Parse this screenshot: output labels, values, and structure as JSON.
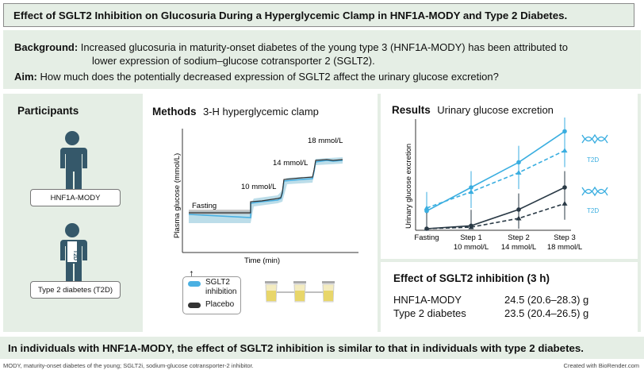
{
  "title": "Effect of SGLT2 Inhibition on Glucosuria During a Hyperglycemic Clamp in HNF1A-MODY and Type 2 Diabetes.",
  "background": {
    "label": "Background:",
    "line1": "Increased glucosuria in maturity-onset diabetes of the young type 3 (HNF1A-MODY) has been attributed to",
    "line2": "lower expression of sodium–glucose cotransporter 2 (SGLT2)."
  },
  "aim": {
    "label": "Aim:",
    "text": "How much does the potentially decreased expression of SGLT2 affect the urinary glucose excretion?"
  },
  "participants": {
    "heading": "Participants",
    "group1": "HNF1A-MODY",
    "group2": "Type 2 diabetes (T2D)",
    "t2d_tag": "T2D"
  },
  "methods": {
    "heading": "Methods",
    "subheading": "3-H hyperglycemic clamp",
    "ylabel": "Plasma glucose (mmol/L)",
    "xlabel": "Time (min)",
    "labels": [
      "Fasting",
      "10 mmol/L",
      "14 mmol/L",
      "18 mmol/L"
    ],
    "legend_sglt2": "SGLT2 inhibition",
    "legend_sglt2_l1": "SGLT2",
    "legend_sglt2_l2": "inhibition",
    "legend_placebo": "Placebo",
    "colors": {
      "sglt2": "#4ab0e2",
      "placebo": "#3c3c3c"
    }
  },
  "results": {
    "heading": "Results",
    "subheading": "Urinary glucose excretion",
    "ylabel": "Urinary glucose excretion",
    "xticks": [
      {
        "l1": "Fasting",
        "l2": ""
      },
      {
        "l1": "Step 1",
        "l2": "10 mmol/L"
      },
      {
        "l1": "Step 2",
        "l2": "14 mmol/L"
      },
      {
        "l1": "Step 3",
        "l2": "18 mmol/L"
      }
    ],
    "series_tag_t2d": "T2D",
    "colors": {
      "sglt2": "#3aaee0",
      "placebo": "#2a3a46"
    }
  },
  "chart_data": {
    "type": "line",
    "x": [
      "Fasting",
      "Step 1",
      "Step 2",
      "Step 3"
    ],
    "series": [
      {
        "name": "",
        "group": "HNF1A-MODY",
        "condition": "SGLT2 inhibition",
        "values": [
          0.12,
          0.28,
          0.45,
          0.66
        ],
        "style": "solid",
        "color": "#3aaee0"
      },
      {
        "name": "",
        "group": "T2D",
        "condition": "SGLT2 inhibition",
        "values": [
          0.14,
          0.25,
          0.38,
          0.53
        ],
        "style": "dashed",
        "color": "#3aaee0"
      },
      {
        "name": "",
        "group": "HNF1A-MODY",
        "condition": "Placebo",
        "values": [
          0.0,
          0.02,
          0.13,
          0.28
        ],
        "style": "solid",
        "color": "#2a3a46"
      },
      {
        "name": "",
        "group": "T2D",
        "condition": "Placebo",
        "values": [
          0.0,
          0.01,
          0.07,
          0.17
        ],
        "style": "dashed",
        "color": "#2a3a46"
      }
    ],
    "ylabel": "Urinary glucose excretion"
  },
  "effect": {
    "heading": "Effect of SGLT2 inhibition (3 h)",
    "rows": [
      {
        "group": "HNF1A-MODY",
        "value": "24.5 (20.6–28.3) g"
      },
      {
        "group": "Type 2 diabetes",
        "value": "23.5 (20.4–26.5) g"
      }
    ]
  },
  "conclusion": "In individuals with HNF1A-MODY, the effect of SGLT2 inhibition is similar to that in individuals with type 2 diabetes.",
  "footnote": "MODY, maturity-onset diabetes of the young; SGLT2i, sodium-glucose cotransporter-2 inhibitor.",
  "credit": "Created with BioRender.com"
}
